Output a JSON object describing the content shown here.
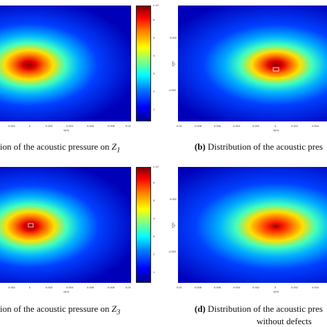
{
  "panels": [
    {
      "id": "a",
      "label": "",
      "caption_text": "ion of the acoustic pressure on ",
      "caption_sym": "Z",
      "caption_sub": "1",
      "caption_extra": "",
      "x_ticks": [
        "0.002",
        "0",
        "0.002",
        "0.004",
        "0.006",
        "0.008",
        "0.01"
      ],
      "x_label": "x(m)",
      "y_label": "",
      "y_ticks": [],
      "colorbar": {
        "ticks": [
          "6",
          "5",
          "4",
          "3",
          "2",
          "1"
        ],
        "exponent": "x 10´"
      }
    },
    {
      "id": "b",
      "label": "(b)",
      "caption_text": "Distribution of the acoustic pres",
      "caption_sym": "",
      "caption_sub": "",
      "caption_extra": "",
      "x_ticks": [
        "0.01",
        "0.008",
        "0.006",
        "0.004",
        "0.002",
        "0",
        "0.002",
        "0.004"
      ],
      "x_label": "x(m)",
      "y_label": "y(m)",
      "y_ticks": [
        "0.002",
        "0",
        "-0.002"
      ],
      "colorbar": null
    },
    {
      "id": "c",
      "label": "",
      "caption_text": "ion of the acoustic pressure on ",
      "caption_sym": "Z",
      "caption_sub": "3",
      "caption_extra": "",
      "x_ticks": [
        "0.002",
        "0",
        "0.002",
        "0.004",
        "0.006",
        "0.008",
        "0.01"
      ],
      "x_label": "x(m)",
      "y_label": "",
      "y_ticks": [],
      "colorbar": {
        "ticks": [
          "6",
          "5",
          "4",
          "3",
          "2",
          "1"
        ],
        "exponent": "x 10´"
      }
    },
    {
      "id": "d",
      "label": "(d)",
      "caption_text": "Distribution of the acoustic pres",
      "caption_sym": "",
      "caption_sub": "",
      "caption_extra": "without defects",
      "x_ticks": [
        "0.01",
        "0.008",
        "0.006",
        "0.004",
        "0.002",
        "0",
        "0.002",
        "0.004"
      ],
      "x_label": "x(m)",
      "y_label": "y(m)",
      "y_ticks": [
        "0.002",
        "0",
        "-0.002"
      ],
      "colorbar": null
    }
  ],
  "colors": {
    "deep_blue": "#0000a8",
    "blue": "#0018ff",
    "cyan": "#00e8ff",
    "yellow": "#ffe000",
    "red": "#e00000",
    "dark_red": "#8a0000"
  }
}
